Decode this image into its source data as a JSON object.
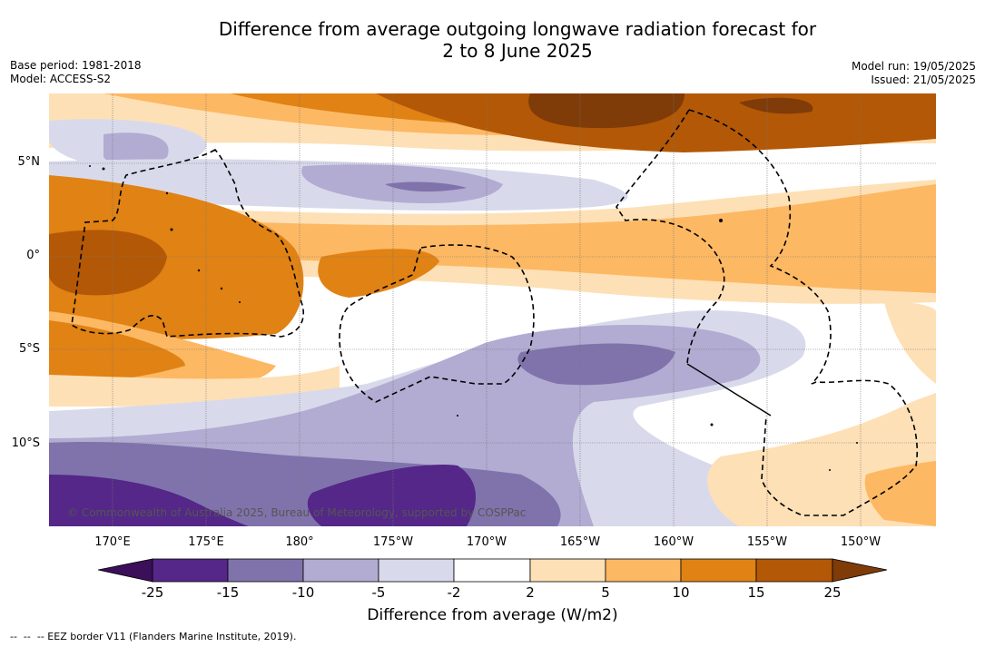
{
  "title": {
    "line1": "Difference from average outgoing longwave radiation forecast for",
    "line2": "2 to 8 June 2025"
  },
  "meta_left": {
    "base_period": "Base period: 1981-2018",
    "model": "Model: ACCESS-S2"
  },
  "meta_right": {
    "model_run": "Model run: 19/05/2025",
    "issued": "Issued: 21/05/2025"
  },
  "map": {
    "lat_labels": [
      "5°N",
      "0°",
      "5°S",
      "10°S"
    ],
    "lon_labels": [
      "170°E",
      "175°E",
      "180°",
      "175°W",
      "170°W",
      "165°W",
      "160°W",
      "155°W",
      "150°W"
    ],
    "copyright": "© Commonwealth of Australia 2025, Bureau of Meteorology, supported by COSPPac",
    "colors": {
      "lt_m25": "#3b0f59",
      "m25_m15": "#542788",
      "m15_m10": "#8073ac",
      "m10_m5": "#b2abd2",
      "m5_m2": "#d8daeb",
      "m2_2": "#ffffff",
      "p2_5": "#fee0b6",
      "p5_10": "#fdb863",
      "p10_15": "#e08214",
      "p15_25": "#b35806",
      "gt_25": "#7f3b08"
    }
  },
  "colorbar": {
    "ticks": [
      "-25",
      "-15",
      "-10",
      "-5",
      "-2",
      "2",
      "5",
      "10",
      "15",
      "25"
    ],
    "title": "Difference from average (W/m2)"
  },
  "footnote": "--  --  -- EEZ border V11 (Flanders Marine Institute, 2019)."
}
